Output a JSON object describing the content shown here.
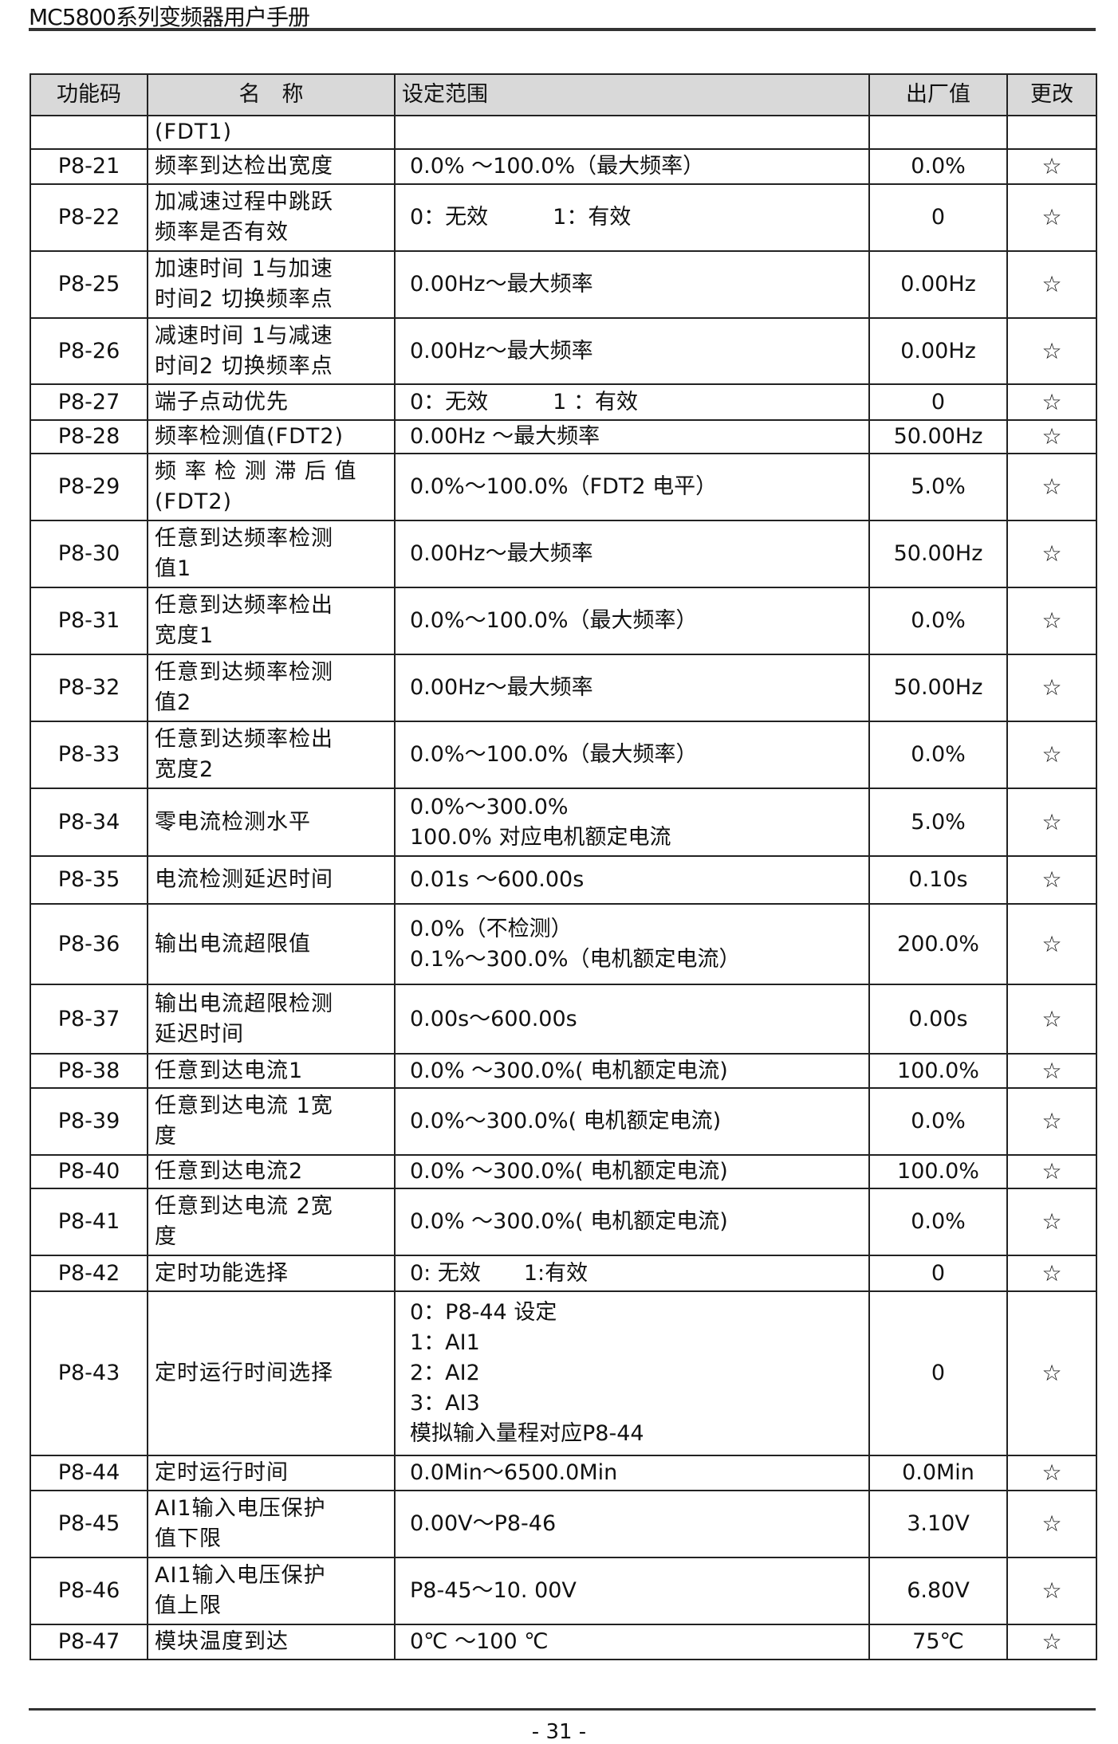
{
  "header": {
    "title": "MC5800系列变频器用户手册"
  },
  "table": {
    "columns": [
      "功能码",
      "名　称",
      "设定范围",
      "出厂值",
      "更改"
    ],
    "rows": [
      {
        "code": "",
        "name": [
          "(FDT1)"
        ],
        "range": [
          ""
        ],
        "default": "",
        "change": ""
      },
      {
        "code": "P8-21",
        "name": [
          "频率到达检出宽度"
        ],
        "range": [
          "0.0% ～100.0%（最大频率）"
        ],
        "default": "0.0%",
        "change": "☆"
      },
      {
        "code": "P8-22",
        "name": [
          "加减速过程中跳跃",
          "频率是否有效"
        ],
        "range": [
          "0：无效　　　1：有效"
        ],
        "default": "0",
        "change": "☆"
      },
      {
        "code": "P8-25",
        "name": [
          "加速时间 1与加速",
          "时间2 切换频率点"
        ],
        "range": [
          "0.00Hz～最大频率"
        ],
        "default": "0.00Hz",
        "change": "☆"
      },
      {
        "code": "P8-26",
        "name": [
          "减速时间 1与减速",
          "时间2 切换频率点"
        ],
        "range": [
          "0.00Hz～最大频率"
        ],
        "default": "0.00Hz",
        "change": "☆"
      },
      {
        "code": "P8-27",
        "name": [
          "端子点动优先"
        ],
        "range": [
          "0：无效　　　1 ：有效"
        ],
        "default": "0",
        "change": "☆"
      },
      {
        "code": "P8-28",
        "name": [
          "频率检测值(FDT2)"
        ],
        "range": [
          "0.00Hz ～最大频率"
        ],
        "default": "50.00Hz",
        "change": "☆"
      },
      {
        "code": "P8-29",
        "name": [
          "频 率 检 测 滞 后 值",
          "(FDT2)"
        ],
        "range": [
          "0.0%～100.0%（FDT2 电平）"
        ],
        "default": "5.0%",
        "change": "☆"
      },
      {
        "code": "P8-30",
        "name": [
          "任意到达频率检测",
          "值1"
        ],
        "range": [
          "0.00Hz～最大频率"
        ],
        "default": "50.00Hz",
        "change": "☆"
      },
      {
        "code": "P8-31",
        "name": [
          "任意到达频率检出",
          "宽度1"
        ],
        "range": [
          "0.0%～100.0%（最大频率）"
        ],
        "default": "0.0%",
        "change": "☆"
      },
      {
        "code": "P8-32",
        "name": [
          "任意到达频率检测",
          "值2"
        ],
        "range": [
          "0.00Hz～最大频率"
        ],
        "default": "50.00Hz",
        "change": "☆"
      },
      {
        "code": "P8-33",
        "name": [
          "任意到达频率检出",
          "宽度2"
        ],
        "range": [
          "0.0%～100.0%（最大频率）"
        ],
        "default": "0.0%",
        "change": "☆"
      },
      {
        "code": "P8-34",
        "name": [
          "零电流检测水平"
        ],
        "range": [
          "0.0%～300.0%",
          "100.0% 对应电机额定电流"
        ],
        "default": "5.0%",
        "change": "☆"
      },
      {
        "code": "P8-35",
        "name": [
          "电流检测延迟时间"
        ],
        "range": [
          "0.01s ～600.00s"
        ],
        "default": "0.10s",
        "change": "☆"
      },
      {
        "code": "P8-36",
        "name": [
          "输出电流超限值"
        ],
        "range": [
          "0.0%（不检测）",
          "0.1%～300.0%（电机额定电流）"
        ],
        "default": "200.0%",
        "change": "☆"
      },
      {
        "code": "P8-37",
        "name": [
          "输出电流超限检测",
          "延迟时间"
        ],
        "range": [
          "0.00s～600.00s"
        ],
        "default": "0.00s",
        "change": "☆"
      },
      {
        "code": "P8-38",
        "name": [
          "任意到达电流1"
        ],
        "range": [
          "0.0% ～300.0%( 电机额定电流)"
        ],
        "default": "100.0%",
        "change": "☆"
      },
      {
        "code": "P8-39",
        "name": [
          "任意到达电流 1宽",
          "度"
        ],
        "range": [
          "0.0%～300.0%( 电机额定电流)"
        ],
        "default": "0.0%",
        "change": "☆"
      },
      {
        "code": "P8-40",
        "name": [
          "任意到达电流2"
        ],
        "range": [
          "0.0% ～300.0%( 电机额定电流)"
        ],
        "default": "100.0%",
        "change": "☆"
      },
      {
        "code": "P8-41",
        "name": [
          "任意到达电流 2宽",
          "度"
        ],
        "range": [
          "0.0% ～300.0%( 电机额定电流)"
        ],
        "default": "0.0%",
        "change": "☆"
      },
      {
        "code": "P8-42",
        "name": [
          "定时功能选择"
        ],
        "range": [
          "0: 无效　　1:有效"
        ],
        "default": "0",
        "change": "☆"
      },
      {
        "code": "P8-43",
        "name": [
          "定时运行时间选择"
        ],
        "range": [
          "0：P8-44 设定",
          "1：AI1",
          "2：AI2",
          "3：AI3",
          "模拟输入量程对应P8-44"
        ],
        "default": "0",
        "change": "☆"
      },
      {
        "code": "P8-44",
        "name": [
          "定时运行时间"
        ],
        "range": [
          "0.0Min～6500.0Min"
        ],
        "default": "0.0Min",
        "change": "☆"
      },
      {
        "code": "P8-45",
        "name": [
          "AI1输入电压保护",
          "值下限"
        ],
        "range": [
          "0.00V～P8-46"
        ],
        "default": "3.10V",
        "change": "☆"
      },
      {
        "code": "P8-46",
        "name": [
          "AI1输入电压保护",
          "值上限"
        ],
        "range": [
          "P8-45～10. 00V"
        ],
        "default": "6.80V",
        "change": "☆"
      },
      {
        "code": "P8-47",
        "name": [
          "模块温度到达"
        ],
        "range": [
          "0℃ ～100 ℃"
        ],
        "default": "75℃",
        "change": "☆"
      }
    ]
  },
  "footer": {
    "page": "- 31 -"
  }
}
